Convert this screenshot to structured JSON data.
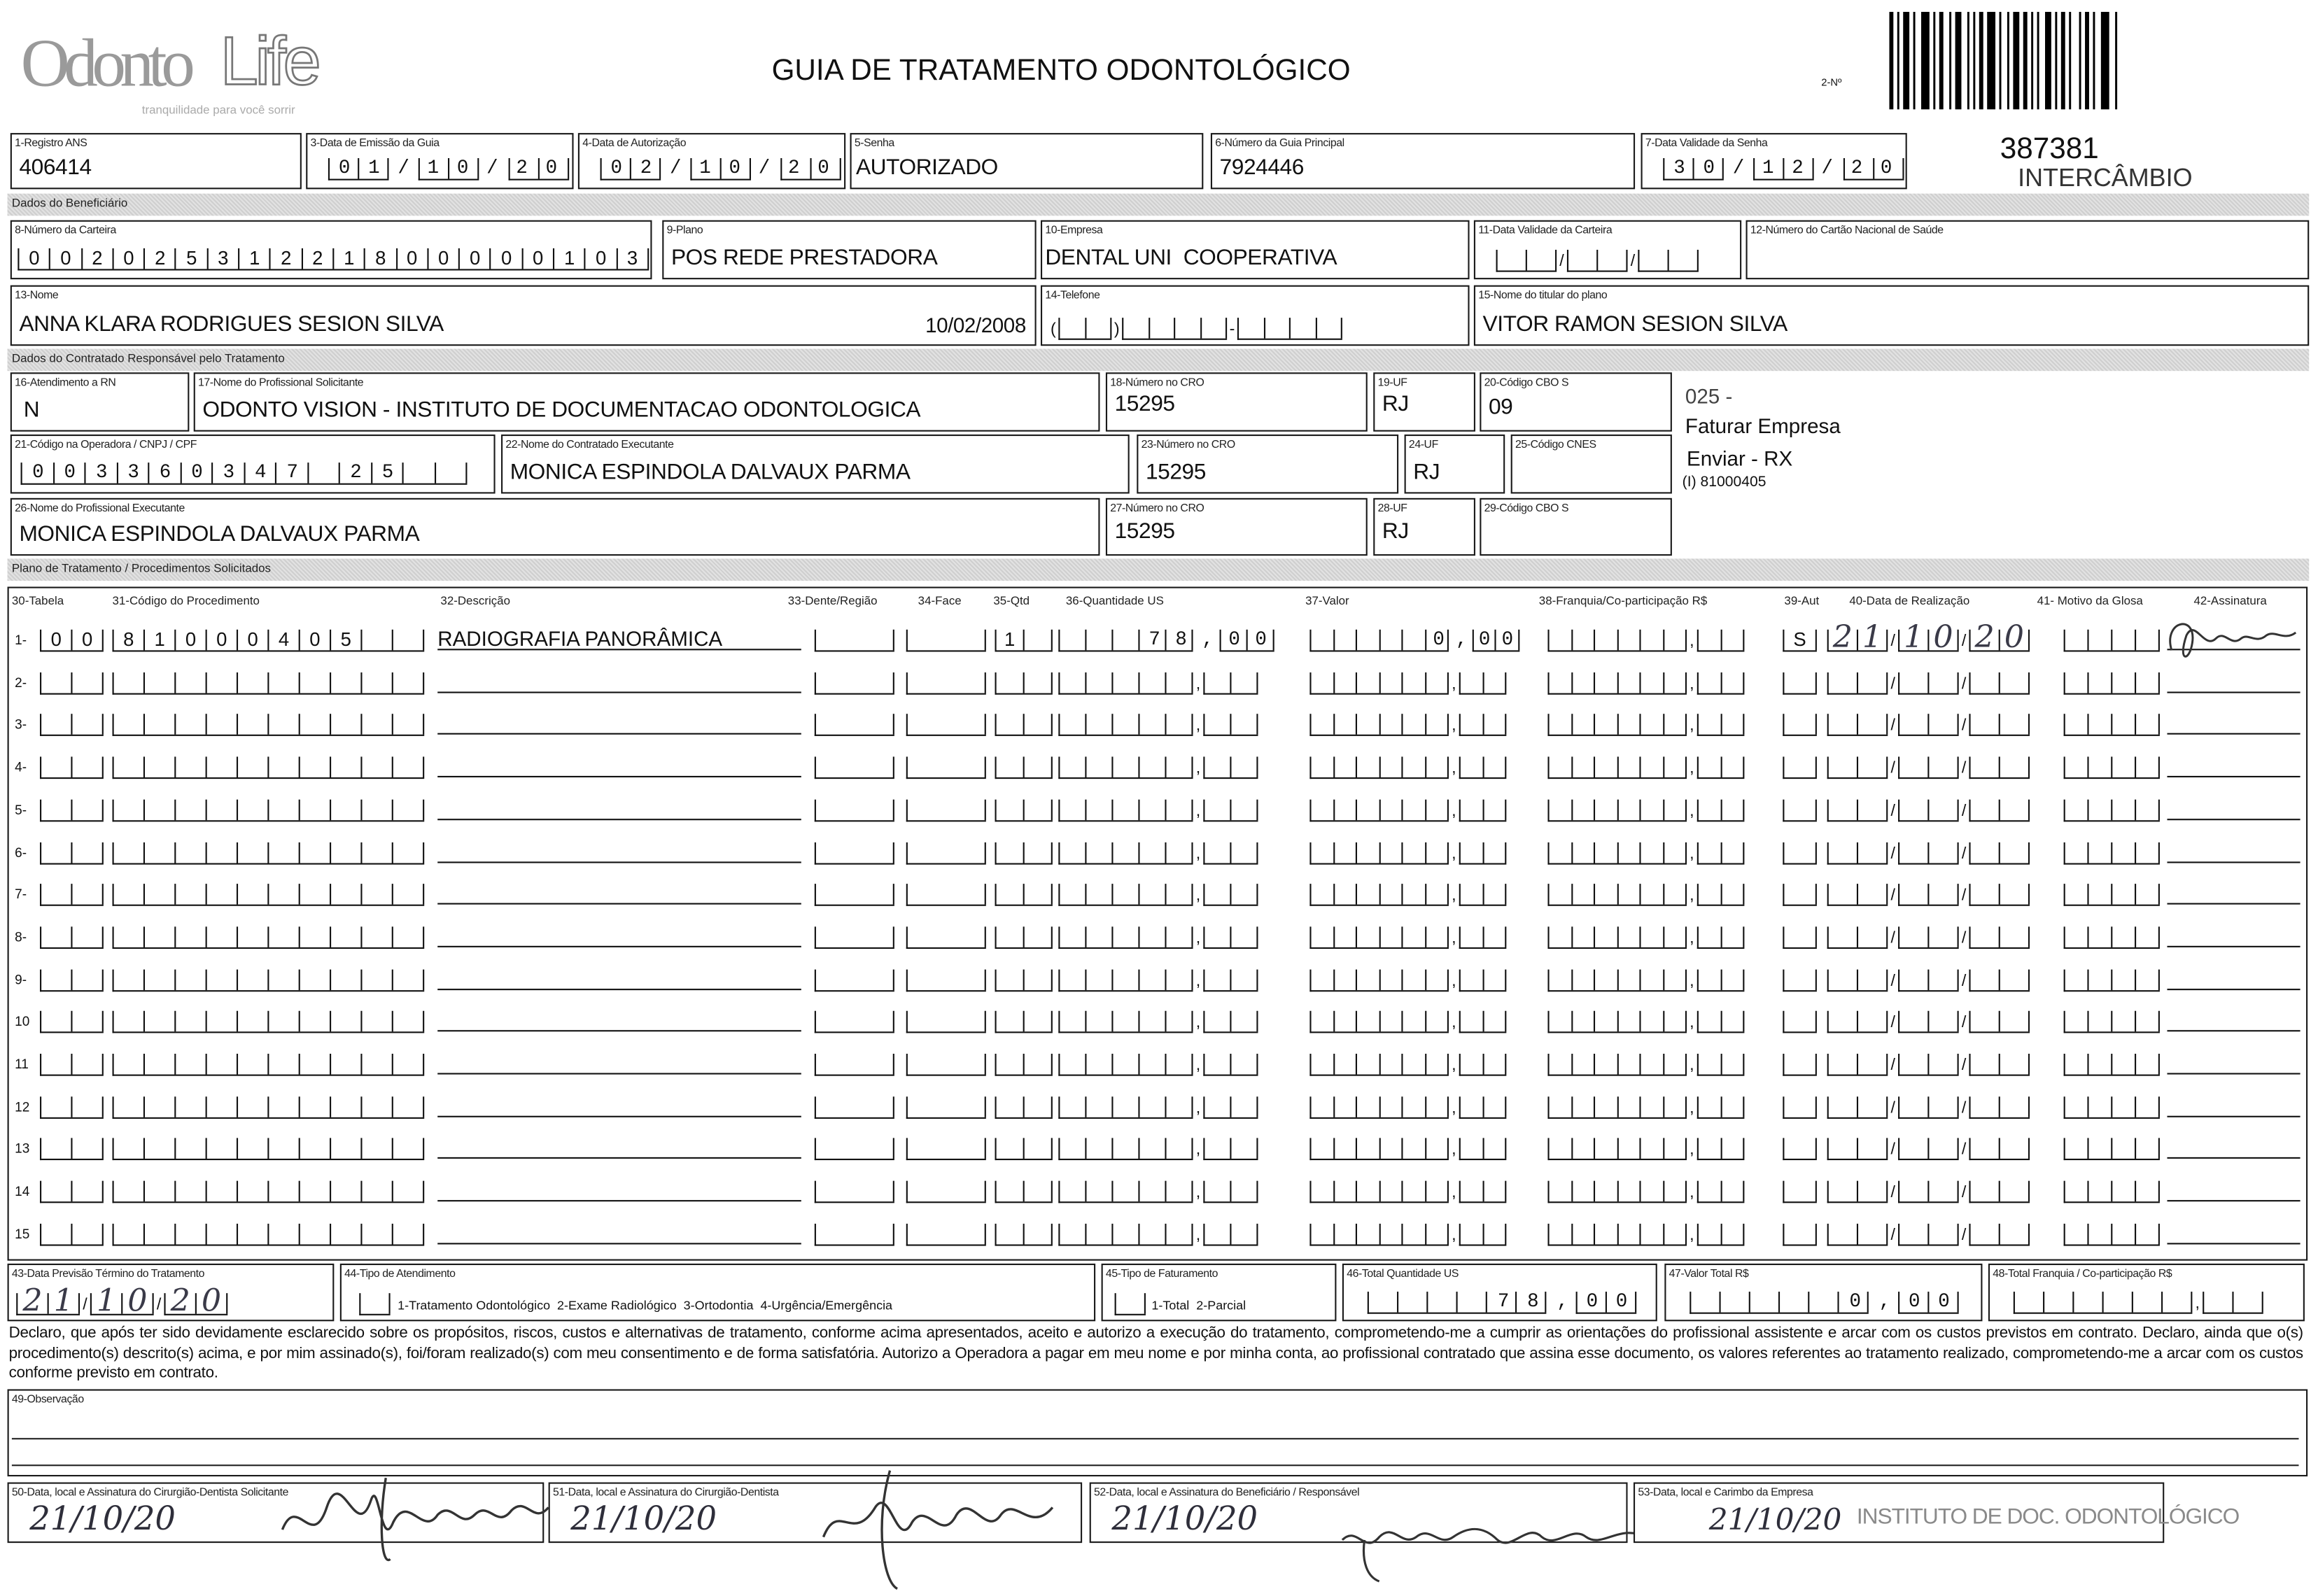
{
  "header": {
    "logo_text_a": "Odonto",
    "logo_text_b": "Life",
    "logo_tagline": "tranquilidade para você sorrir",
    "title": "GUIA DE TRATAMENTO ODONTOLÓGICO",
    "numero_label": "2-Nº",
    "guide_number": "387381",
    "guide_type": "INTERCÂMBIO"
  },
  "sections": {
    "beneficiario": "Dados do Beneficiário",
    "contratado": "Dados do Contratado Responsável pelo Tratamento",
    "plano": "Plano de Tratamento / Procedimentos Solicitados"
  },
  "fields": {
    "f1": {
      "label": "1-Registro ANS",
      "value": "406414"
    },
    "f3": {
      "label": "3-Data de Emissão da Guia",
      "value": "01/10/20"
    },
    "f4": {
      "label": "4-Data de Autorização",
      "value": "02/10/20"
    },
    "f5": {
      "label": "5-Senha",
      "value": "AUTORIZADO"
    },
    "f6": {
      "label": "6-Número da Guia Principal",
      "value": "7924446"
    },
    "f7": {
      "label": "7-Data Validade da Senha",
      "value": "30/12/20"
    },
    "f8": {
      "label": "8-Número da Carteira",
      "value": "00202531221800000103"
    },
    "f9": {
      "label": "9-Plano",
      "value": "POS REDE PRESTADORA"
    },
    "f10": {
      "label": "10-Empresa",
      "value": "DENTAL UNI  COOPERATIVA"
    },
    "f11": {
      "label": "11-Data Validade da Carteira",
      "value": "//"
    },
    "f12": {
      "label": "12-Número do Cartão Nacional de Saúde",
      "value": ""
    },
    "f13": {
      "label": "13-Nome",
      "value": "ANNA KLARA RODRIGUES SESION SILVA",
      "birth": "10/02/2008"
    },
    "f14": {
      "label": "14-Telefone",
      "value": "()-"
    },
    "f15": {
      "label": "15-Nome do titular do plano",
      "value": "VITOR RAMON SESION SILVA"
    },
    "f16": {
      "label": "16-Atendimento a RN",
      "value": "N"
    },
    "f17": {
      "label": "17-Nome do Profissional Solicitante",
      "value": "ODONTO VISION - INSTITUTO DE DOCUMENTACAO ODONTOLOGICA"
    },
    "f18": {
      "label": "18-Número no CRO",
      "value": "15295"
    },
    "f19": {
      "label": "19-UF",
      "value": "RJ"
    },
    "f20": {
      "label": "20-Código CBO S",
      "value": "09"
    },
    "f21": {
      "label": "21-Código na Operadora / CNPJ / CPF",
      "value": "003360347 25"
    },
    "f22": {
      "label": "22-Nome do Contratado Executante",
      "value": "MONICA ESPINDOLA DALVAUX PARMA"
    },
    "f23": {
      "label": "23-Número no CRO",
      "value": "15295"
    },
    "f24": {
      "label": "24-UF",
      "value": "RJ"
    },
    "f25": {
      "label": "25-Código CNES",
      "value": ""
    },
    "f26": {
      "label": "26-Nome do Profissional Executante",
      "value": "MONICA ESPINDOLA DALVAUX PARMA"
    },
    "f27": {
      "label": "27-Número no CRO",
      "value": "15295"
    },
    "f28": {
      "label": "28-UF",
      "value": "RJ"
    },
    "f29": {
      "label": "29-Código CBO S",
      "value": ""
    }
  },
  "side_notes": {
    "code": "025 -",
    "billing": "Faturar Empresa",
    "send": "Enviar - RX",
    "proc": "(I) 81000405"
  },
  "procedures": {
    "columns": [
      "30-Tabela",
      "31-Código do Procedimento",
      "32-Descrição",
      "33-Dente/Região",
      "34-Face",
      "35-Qtd",
      "36-Quantidade US",
      "37-Valor",
      "38-Franquia/Co-participação R$",
      "39-Aut",
      "40-Data de Realização",
      "41- Motivo da Glosa",
      "42-Assinatura"
    ],
    "rows": [
      {
        "n": "1-",
        "tabela": "00",
        "codigo": "81000405",
        "descricao": "RADIOGRAFIA PANORÂMICA",
        "dente": "",
        "face": "",
        "qtd": "1",
        "qtd_us": "78,00",
        "valor": "0,00",
        "franquia": ",",
        "aut": "S",
        "data": "21/10/20",
        "glosa": "",
        "signed": true
      },
      {
        "n": "2-"
      },
      {
        "n": "3-"
      },
      {
        "n": "4-"
      },
      {
        "n": "5-"
      },
      {
        "n": "6-"
      },
      {
        "n": "7-"
      },
      {
        "n": "8-"
      },
      {
        "n": "9-"
      },
      {
        "n": "10"
      },
      {
        "n": "11"
      },
      {
        "n": "12"
      },
      {
        "n": "13"
      },
      {
        "n": "14"
      },
      {
        "n": "15"
      }
    ]
  },
  "totals": {
    "f43": {
      "label": "43-Data Previsão Término do Tratamento",
      "value": "21/10/20"
    },
    "f44": {
      "label": "44-Tipo de Atendimento",
      "options": "1-Tratamento Odontológico  2-Exame Radiológico  3-Ortodontia  4-Urgência/Emergência"
    },
    "f45": {
      "label": "45-Tipo de Faturamento",
      "options": "1-Total  2-Parcial"
    },
    "f46": {
      "label": "46-Total Quantidade US",
      "value": "78,00"
    },
    "f47": {
      "label": "47-Valor Total R$",
      "value": "0,00"
    },
    "f48": {
      "label": "48-Total Franquia / Co-participação R$",
      "value": ","
    }
  },
  "declaration": "Declaro, que após ter sido devidamente esclarecido sobre os propósitos, riscos, custos e alternativas de tratamento, conforme acima apresentados, aceito e autorizo a execução do tratamento, comprometendo-me a cumprir as orientações do profissional assistente e arcar com os custos previstos em contrato. Declaro, ainda que o(s) procedimento(s) descrito(s) acima, e por mim assinado(s), foi/foram realizado(s) com meu consentimento e de forma satisfatória. Autorizo a Operadora a pagar em meu nome e por minha conta, ao profissional contratado que assina esse documento, os valores referentes ao tratamento realizado, comprometendo-me a arcar com os custos conforme previsto em contrato.",
  "observacao": {
    "label": "49-Observação",
    "value": ""
  },
  "signatures": {
    "f50": {
      "label": "50-Data, local e Assinatura do Cirurgião-Dentista Solicitante",
      "date": "21/10/20"
    },
    "f51": {
      "label": "51-Data, local e Assinatura do Cirurgião-Dentista",
      "date": "21/10/20"
    },
    "f52": {
      "label": "52-Data, local e Assinatura do Beneficiário / Responsável",
      "date": "21/10/20"
    },
    "f53": {
      "label": "53-Data, local e Carimbo da Empresa",
      "date": "21/10/20",
      "stamp": "INSTITUTO DE DOC. ODONTOLÓGICO"
    }
  }
}
